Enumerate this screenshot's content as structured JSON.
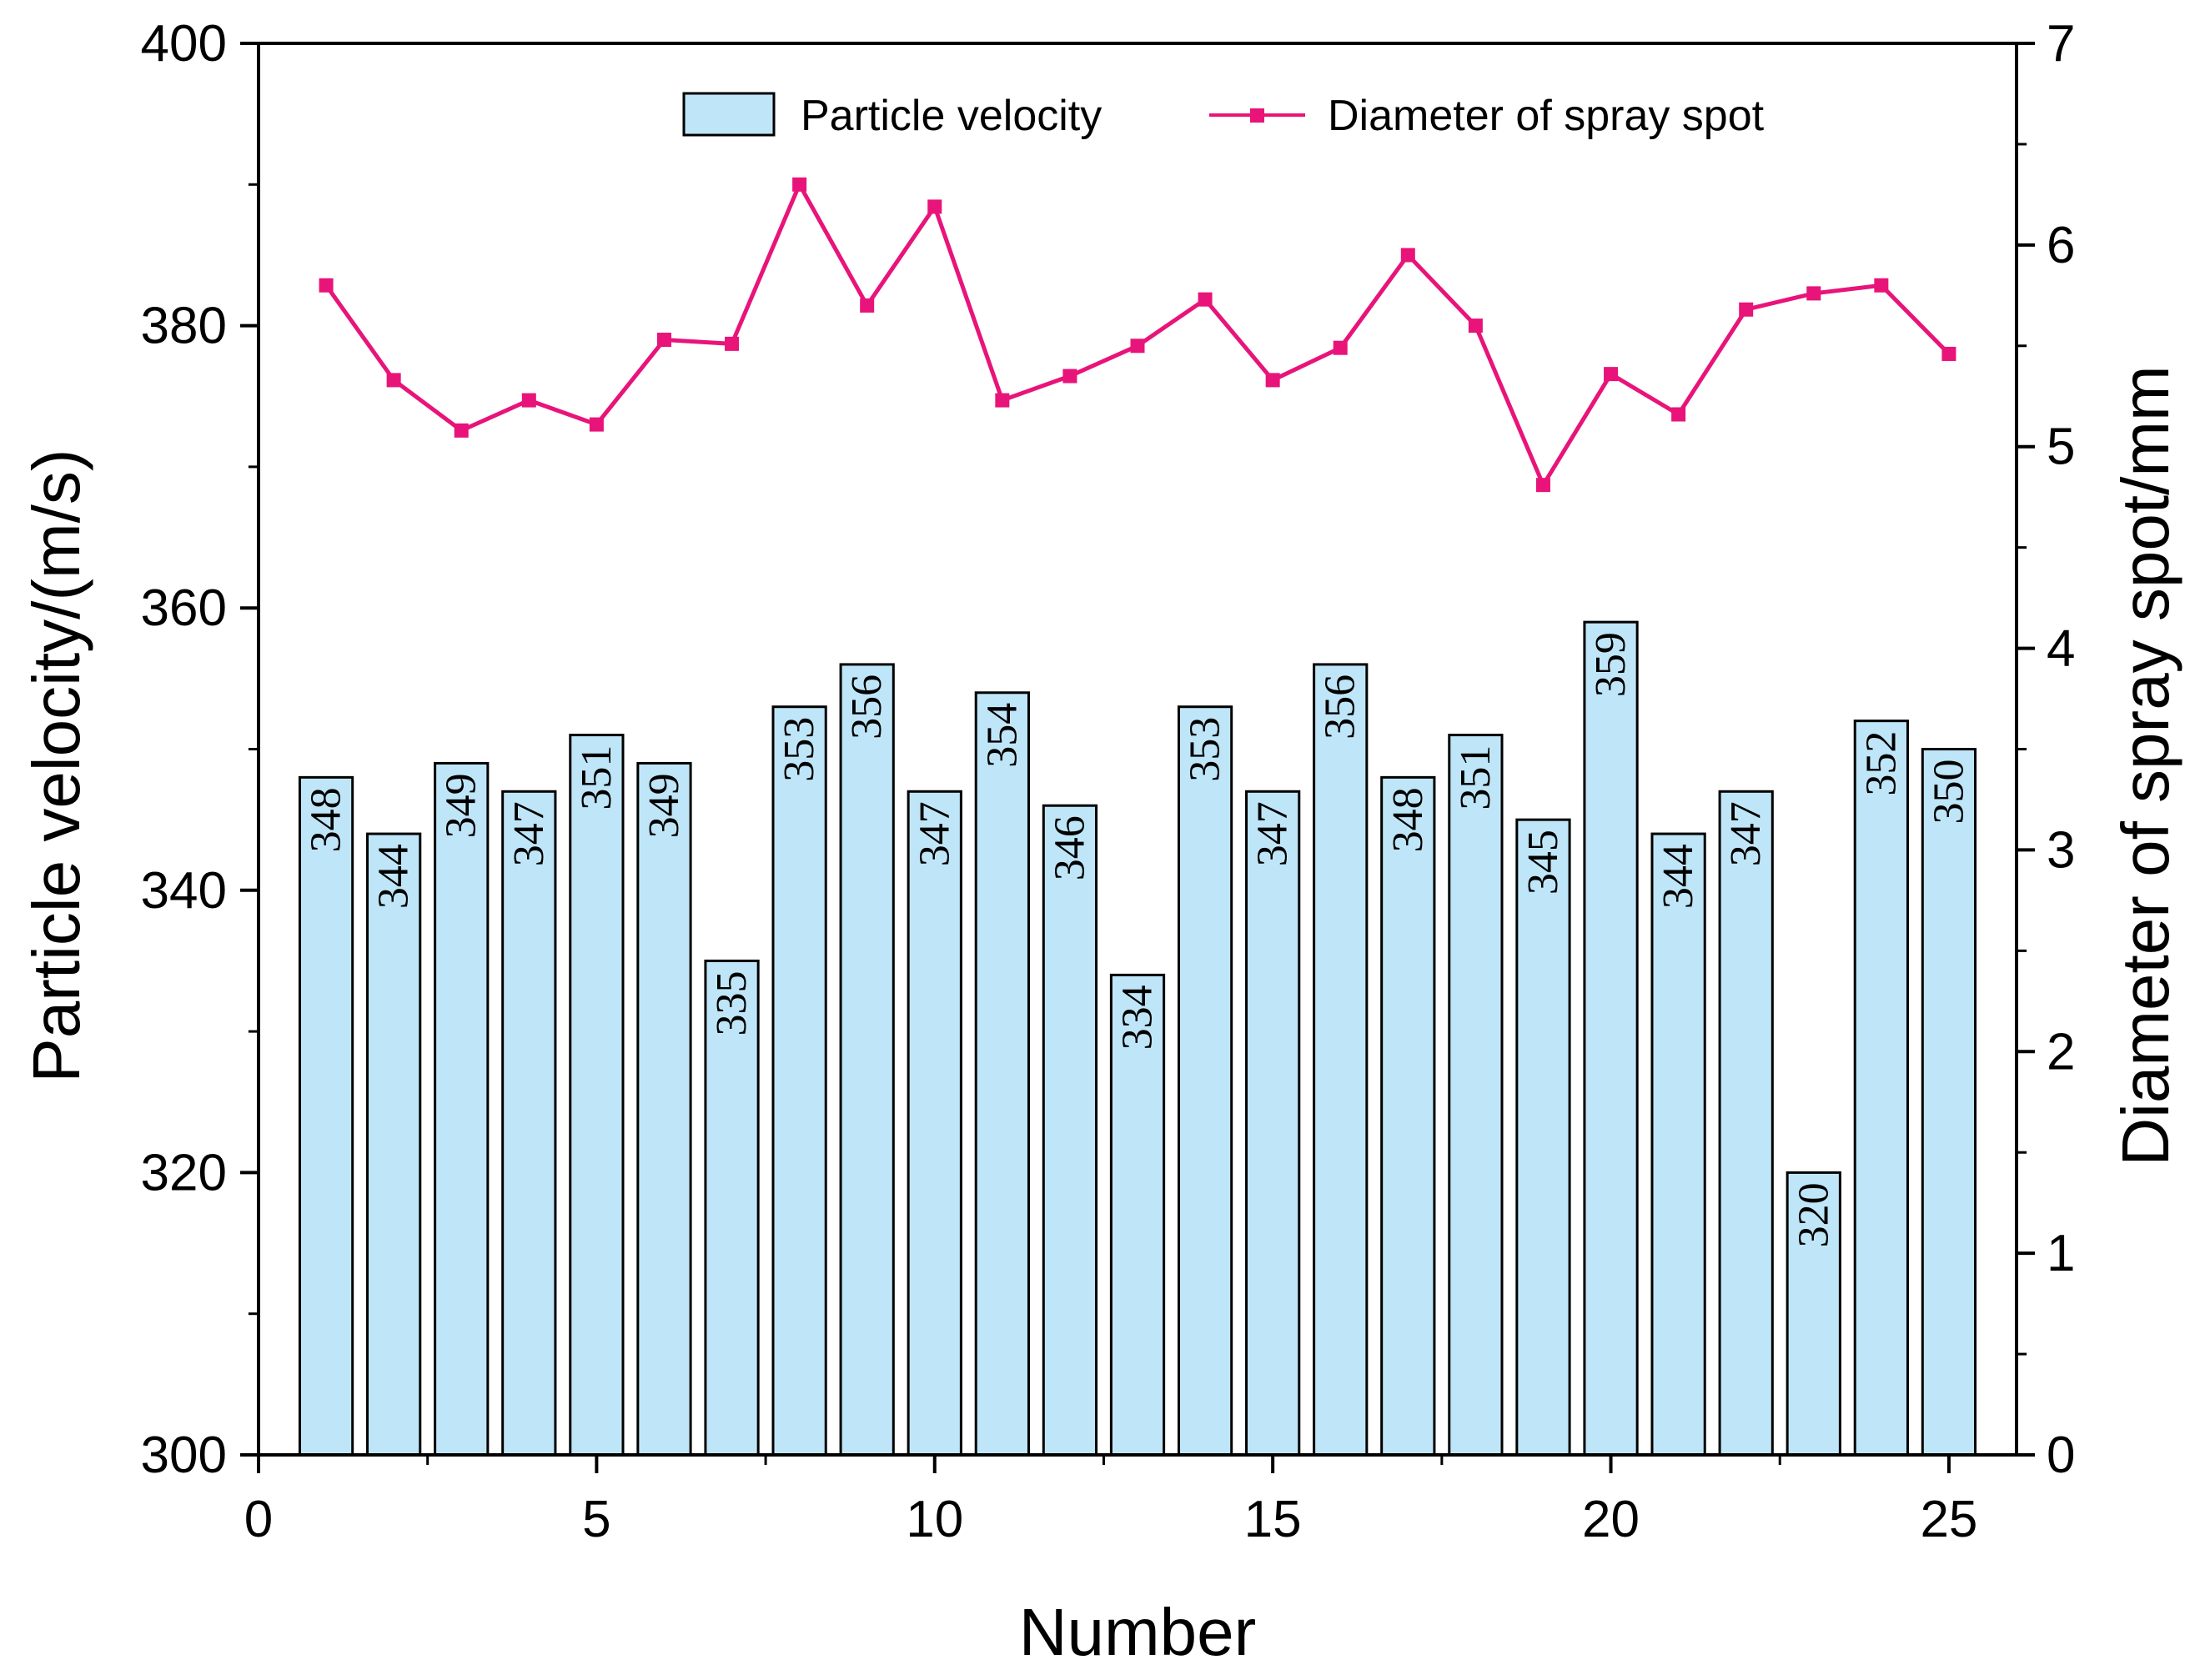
{
  "chart_data": {
    "type": "bar+line",
    "xlabel": "Number",
    "ylabel_left": "Particle velocity/(m/s)",
    "ylabel_right": "Diameter of spray spot/mm",
    "xlim": [
      0,
      26
    ],
    "ylim_left": [
      300,
      400
    ],
    "ylim_right": [
      0,
      7
    ],
    "x_ticks": [
      0,
      5,
      10,
      15,
      20,
      25
    ],
    "y_ticks_left": [
      300,
      320,
      340,
      360,
      380,
      400
    ],
    "y_ticks_right": [
      0,
      1,
      2,
      3,
      4,
      5,
      6,
      7
    ],
    "x": [
      1,
      2,
      3,
      4,
      5,
      6,
      7,
      8,
      9,
      10,
      11,
      12,
      13,
      14,
      15,
      16,
      17,
      18,
      19,
      20,
      21,
      22,
      23,
      24,
      25
    ],
    "series": [
      {
        "name": "Particle velocity",
        "kind": "bar",
        "axis": "left",
        "color": "#bfe6f8",
        "values": [
          348,
          344,
          349,
          347,
          351,
          349,
          335,
          353,
          356,
          347,
          354,
          346,
          334,
          353,
          347,
          356,
          348,
          351,
          345,
          359,
          344,
          347,
          320,
          352,
          350
        ],
        "labels": [
          "348",
          "344",
          "349",
          "347",
          "351",
          "349",
          "335",
          "353",
          "356",
          "347",
          "354",
          "346",
          "334",
          "353",
          "347",
          "356",
          "348",
          "351",
          "345",
          "359",
          "344",
          "347",
          "320",
          "352",
          "350"
        ]
      },
      {
        "name": "Diameter of spray spot",
        "kind": "line",
        "axis": "right",
        "color": "#e8147a",
        "marker": "square",
        "values": [
          5.8,
          5.33,
          5.08,
          5.23,
          5.11,
          5.53,
          5.51,
          6.3,
          5.7,
          6.19,
          5.23,
          5.35,
          5.5,
          5.73,
          5.33,
          5.49,
          5.95,
          5.6,
          4.81,
          5.36,
          5.16,
          5.68,
          5.76,
          5.8,
          5.46
        ]
      }
    ],
    "legend_position": "top-center"
  }
}
